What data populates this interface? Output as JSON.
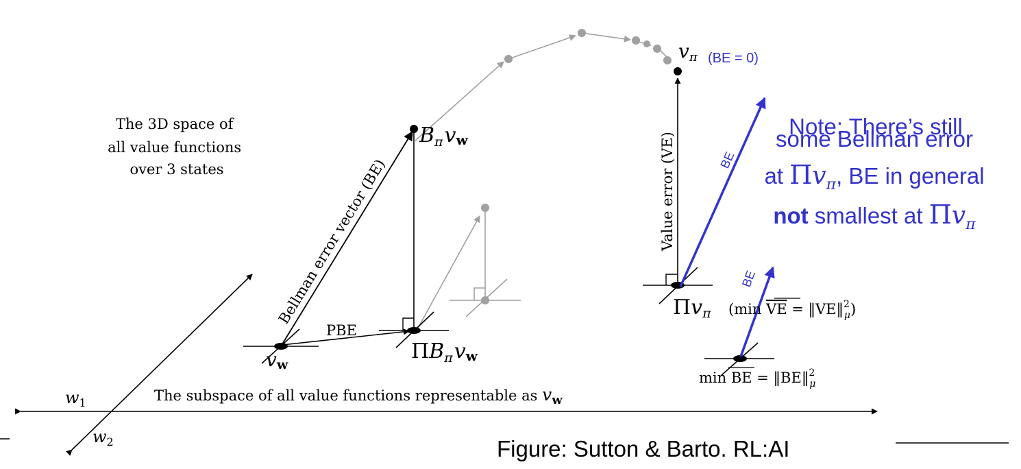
{
  "space_caption": [
    "The 3D space of",
    "all value functions",
    "over 3 states"
  ],
  "subspace_caption_prefix": "The subspace of all value functions representable as ",
  "subspace_caption_symbol": "v",
  "subspace_caption_subscript": "w",
  "axis_w1": {
    "base": "w",
    "sub": "1"
  },
  "axis_w2": {
    "base": "w",
    "sub": "2"
  },
  "v_w": {
    "base": "v",
    "sub": "w"
  },
  "b_pi_v_w": {
    "B": "B",
    "pi": "π",
    "v": "v",
    "w": "w"
  },
  "pi_b_pi_v_w": {
    "Pi": "Π",
    "B": "B",
    "pi": "π",
    "v": "v",
    "w": "w"
  },
  "v_pi": {
    "base": "v",
    "sub": "π"
  },
  "be_zero": "(BE = 0)",
  "pi_v_pi": {
    "Pi": "Π",
    "v": "v",
    "pi": "π"
  },
  "min_ve": {
    "open": "(min ",
    "ve": "VE",
    "eq": " = ‖VE‖",
    "sup": "2",
    "sub": "μ",
    "close": ")"
  },
  "min_be": {
    "min": "min ",
    "be": "BE",
    "eq": " = ‖BE‖",
    "sup": "2",
    "sub": "μ"
  },
  "bellman_error_vector_label": "Bellman error vector (BE)",
  "value_error_label": "Value error (VE)",
  "pbe_label": "PBE",
  "be_arrow_label": "BE",
  "note": {
    "line1": "Note: There’s still",
    "line2": "some Bellman error",
    "line3_pre": "at ",
    "pi": "Π",
    "v": "v",
    "sub": "π",
    "line3_post": ", BE in general",
    "bold": "not",
    "line4_post": " smallest at "
  },
  "figure_credit": "Figure: Sutton & Barto. RL:AI",
  "colors": {
    "ink": "#000000",
    "faded": "#a0a0a0",
    "annotation": "#3333cc"
  }
}
